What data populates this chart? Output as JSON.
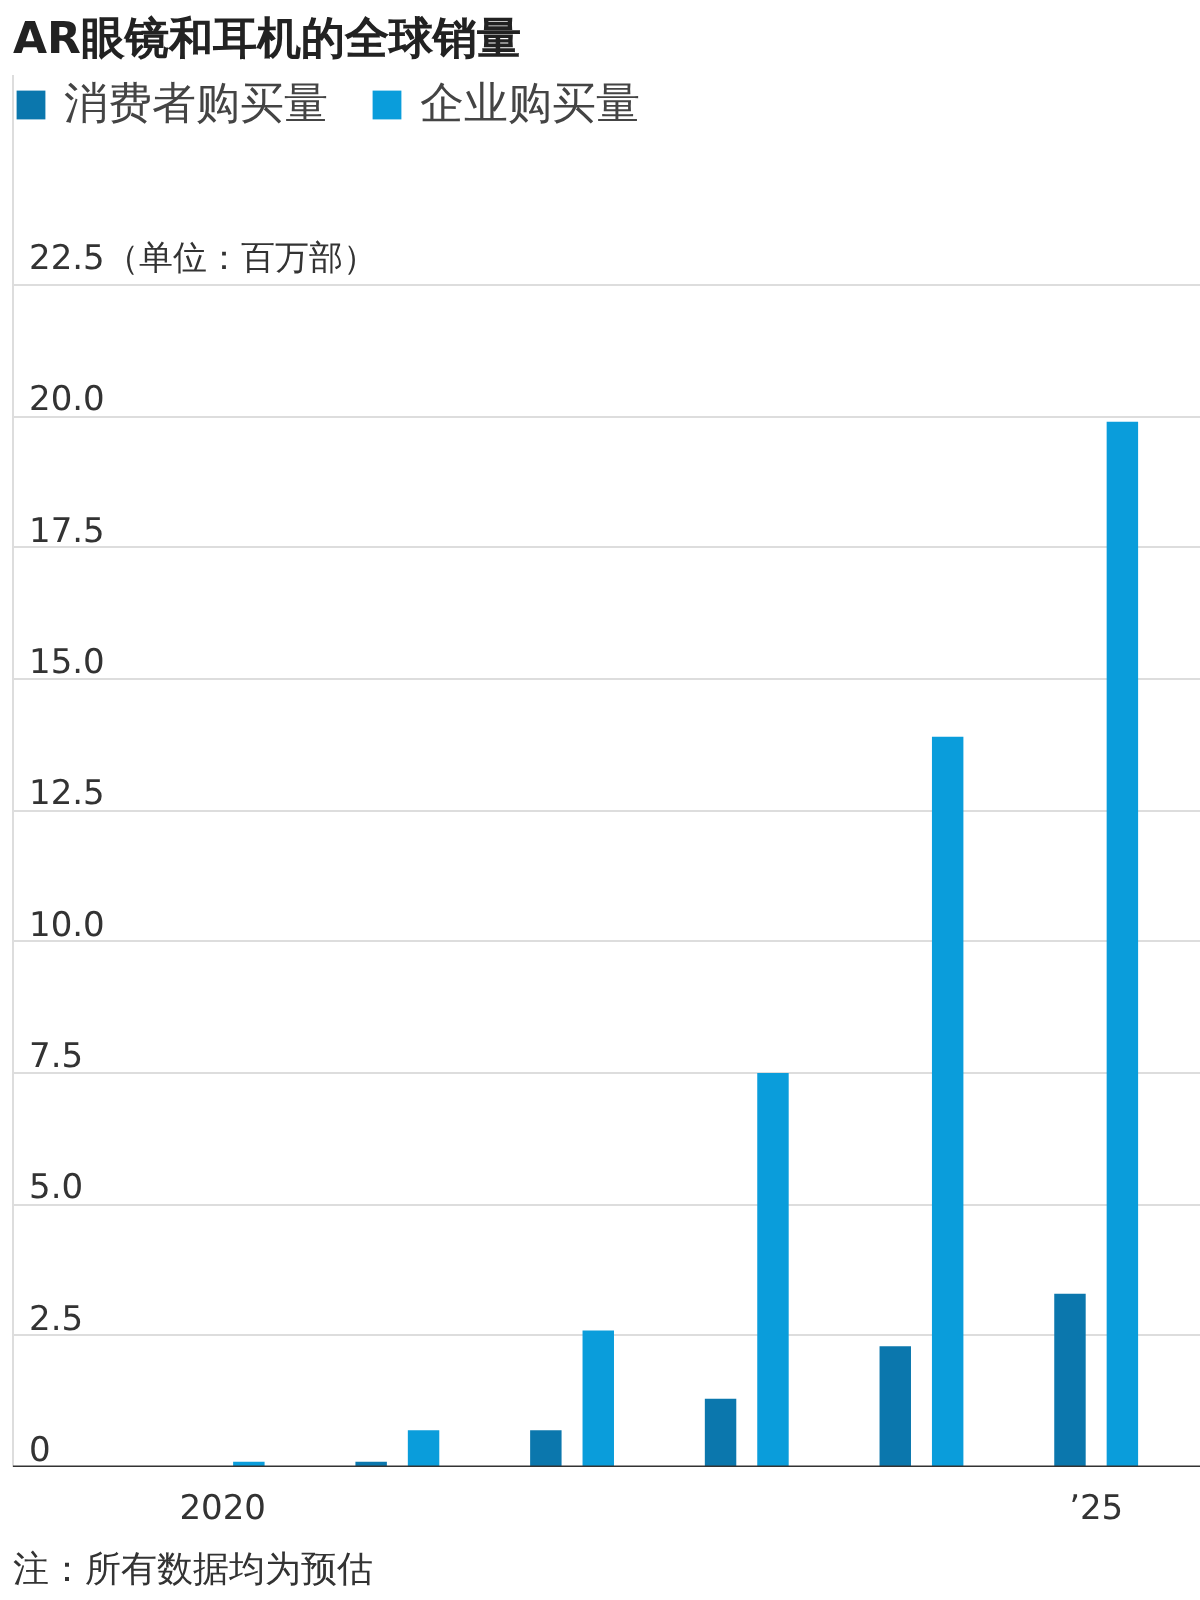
{
  "chart_data": {
    "type": "bar",
    "title": "AR眼镜和耳机的全球销量",
    "categories": [
      "2020",
      null,
      null,
      null,
      null,
      "’25"
    ],
    "series": [
      {
        "name": "消费者购买量",
        "color": "#0b77ad",
        "values": [
          0,
          0.1,
          0.7,
          1.3,
          2.3,
          3.3
        ]
      },
      {
        "name": "企业购买量",
        "color": "#0a9ddb",
        "values": [
          0.1,
          0.7,
          2.6,
          7.5,
          13.9,
          19.9
        ]
      }
    ],
    "ylim": [
      0,
      26.5
    ],
    "yticks": [
      {
        "value": 0,
        "label": "0"
      },
      {
        "value": 2.5,
        "label": "2.5"
      },
      {
        "value": 5,
        "label": "5.0"
      },
      {
        "value": 7.5,
        "label": "7.5"
      },
      {
        "value": 10,
        "label": "10.0"
      },
      {
        "value": 12.5,
        "label": "12.5"
      },
      {
        "value": 15,
        "label": "15.0"
      },
      {
        "value": 17.5,
        "label": "17.5"
      },
      {
        "value": 20,
        "label": "20.0"
      },
      {
        "value": 22.5,
        "label": "22.5（单位：百万部）"
      }
    ],
    "grid": "y",
    "legend": "top",
    "annotations": [
      "注：所有数据均为预估"
    ]
  }
}
